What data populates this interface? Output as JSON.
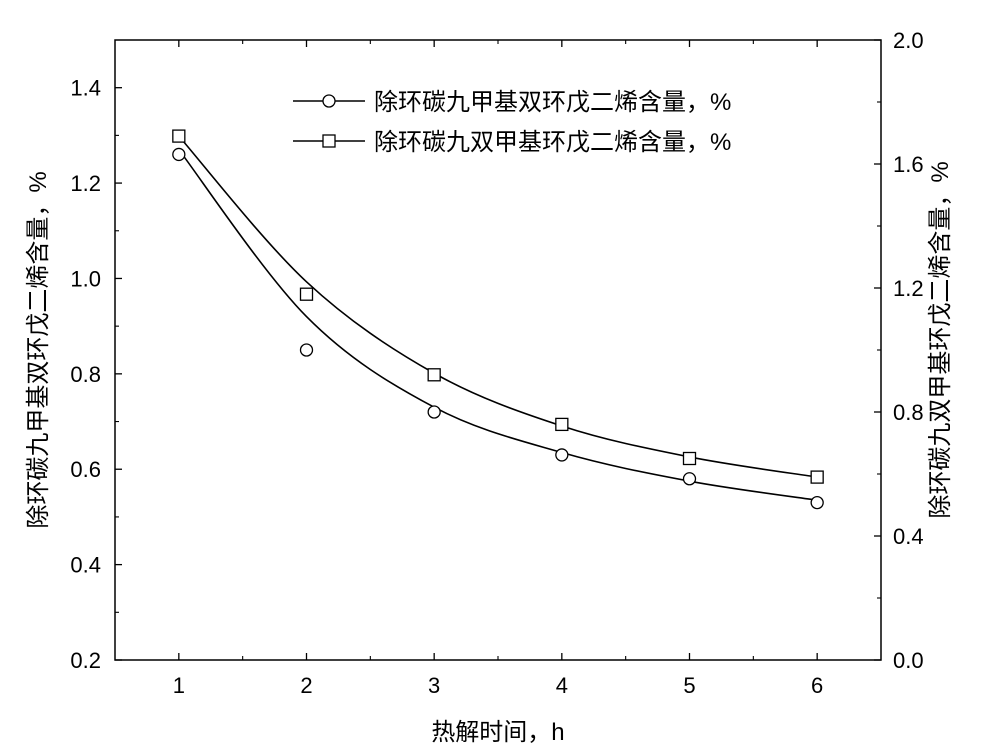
{
  "chart_data": {
    "type": "line",
    "xlabel": "热解时间，h",
    "ylabel_left": "除环碳九甲基双环戊二烯含量，%",
    "ylabel_right": "除环碳九双甲基环戊二烯含量，%",
    "x_ticks": [
      1,
      2,
      3,
      4,
      5,
      6
    ],
    "xlim": [
      0.5,
      6.5
    ],
    "ylim_left": [
      0.2,
      1.5
    ],
    "ylim_right": [
      0.0,
      2.0
    ],
    "y_ticks_left": [
      "0.2",
      "0.4",
      "0.6",
      "0.8",
      "1.0",
      "1.2",
      "1.4"
    ],
    "y_ticks_right": [
      "0.0",
      "0.4",
      "0.8",
      "1.2",
      "1.6",
      "2.0"
    ],
    "grid": false,
    "legend_position": "top-right",
    "series": [
      {
        "name": "除环碳九甲基双环戊二烯含量，%",
        "axis": "left",
        "marker": "circle",
        "x": [
          1,
          2,
          3,
          4,
          5,
          6
        ],
        "y": [
          1.26,
          0.85,
          0.72,
          0.63,
          0.58,
          0.53
        ],
        "fit_y": [
          1.27,
          0.92,
          0.73,
          0.635,
          0.575,
          0.535
        ]
      },
      {
        "name": "除环碳九双甲基环戊二烯含量，%",
        "axis": "right",
        "marker": "square",
        "x": [
          1,
          2,
          3,
          4,
          5,
          6
        ],
        "y": [
          1.69,
          1.18,
          0.92,
          0.76,
          0.65,
          0.59
        ],
        "fit_y": [
          1.69,
          1.22,
          0.925,
          0.755,
          0.655,
          0.59
        ]
      }
    ]
  }
}
